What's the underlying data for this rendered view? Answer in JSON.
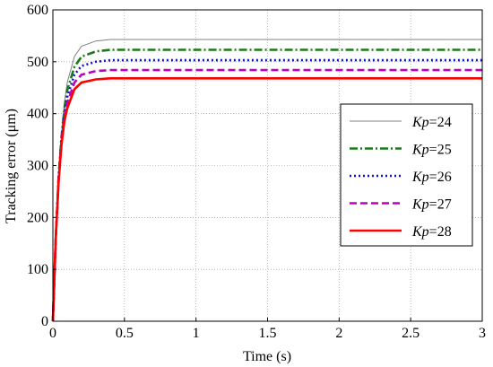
{
  "chart_data": {
    "type": "line",
    "xlabel": "Time (s)",
    "ylabel": "Tracking error (μm)",
    "xlim": [
      0,
      3
    ],
    "ylim": [
      0,
      600
    ],
    "x_ticks": [
      "0",
      "0.5",
      "1",
      "1.5",
      "2",
      "2.5",
      "3"
    ],
    "y_ticks": [
      "0",
      "100",
      "200",
      "300",
      "400",
      "500",
      "600"
    ],
    "grid": true,
    "legend_position": "right",
    "legend_prefix": "Kp",
    "series": [
      {
        "name": "Kp=24",
        "value": "=24",
        "color": "#808080",
        "style": "solid",
        "x": [
          0,
          0.01,
          0.02,
          0.04,
          0.06,
          0.08,
          0.1,
          0.15,
          0.2,
          0.3,
          0.4,
          0.5,
          1,
          3
        ],
        "y": [
          0,
          80,
          160,
          280,
          360,
          420,
          460,
          510,
          530,
          540,
          543,
          543,
          543,
          543
        ]
      },
      {
        "name": "Kp=25",
        "value": "=25",
        "color": "#1a7a1a",
        "style": "dashdot",
        "x": [
          0,
          0.01,
          0.02,
          0.04,
          0.06,
          0.08,
          0.1,
          0.15,
          0.2,
          0.3,
          0.4,
          0.5,
          1,
          3
        ],
        "y": [
          0,
          80,
          160,
          280,
          355,
          410,
          445,
          490,
          510,
          520,
          523,
          523,
          523,
          523
        ]
      },
      {
        "name": "Kp=26",
        "value": "=26",
        "color": "#1010d0",
        "style": "dotted",
        "x": [
          0,
          0.01,
          0.02,
          0.04,
          0.06,
          0.08,
          0.1,
          0.15,
          0.2,
          0.3,
          0.4,
          0.5,
          1,
          3
        ],
        "y": [
          0,
          80,
          160,
          275,
          350,
          400,
          432,
          475,
          492,
          500,
          503,
          503,
          503,
          503
        ]
      },
      {
        "name": "Kp=27",
        "value": "=27",
        "color": "#c000c0",
        "style": "dashed",
        "x": [
          0,
          0.01,
          0.02,
          0.04,
          0.06,
          0.08,
          0.1,
          0.15,
          0.2,
          0.3,
          0.4,
          0.5,
          1,
          3
        ],
        "y": [
          0,
          80,
          160,
          272,
          345,
          392,
          420,
          460,
          475,
          482,
          484,
          484,
          484,
          484
        ]
      },
      {
        "name": "Kp=28",
        "value": "=28",
        "color": "#ff0000",
        "style": "solid",
        "x": [
          0,
          0.01,
          0.02,
          0.04,
          0.06,
          0.08,
          0.1,
          0.15,
          0.2,
          0.3,
          0.4,
          0.5,
          1,
          3
        ],
        "y": [
          0,
          80,
          160,
          270,
          340,
          385,
          410,
          447,
          460,
          466,
          468,
          468,
          468,
          468
        ]
      }
    ]
  }
}
